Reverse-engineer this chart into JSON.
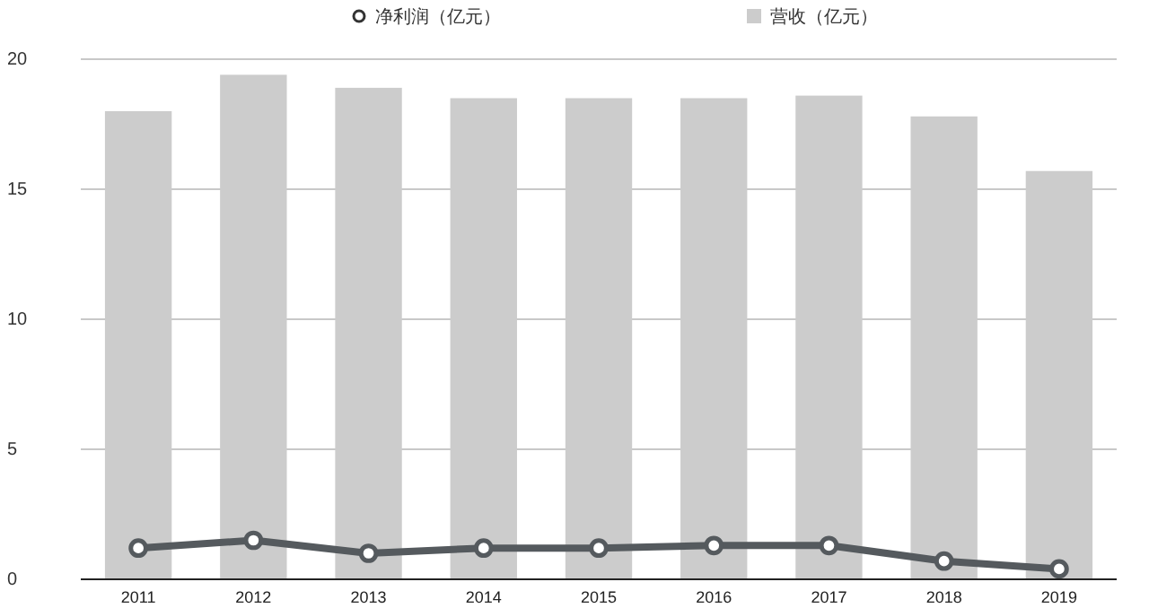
{
  "chart_data": {
    "type": "bar",
    "categories": [
      "2011",
      "2012",
      "2013",
      "2014",
      "2015",
      "2016",
      "2017",
      "2018",
      "2019"
    ],
    "series": [
      {
        "name": "净利润（亿元）",
        "type": "line",
        "color": "#555a5e",
        "values": [
          1.2,
          1.5,
          1.0,
          1.2,
          1.2,
          1.3,
          1.3,
          0.7,
          0.4
        ]
      },
      {
        "name": "营收（亿元）",
        "color": "#cccccc",
        "values": [
          18.0,
          19.4,
          18.9,
          18.5,
          18.5,
          18.5,
          18.6,
          17.8,
          15.7
        ]
      }
    ],
    "ylim": [
      0,
      20
    ],
    "yticks": [
      0,
      5,
      10,
      15,
      20
    ],
    "grid": "y",
    "legend": "top",
    "marker": "circle"
  }
}
